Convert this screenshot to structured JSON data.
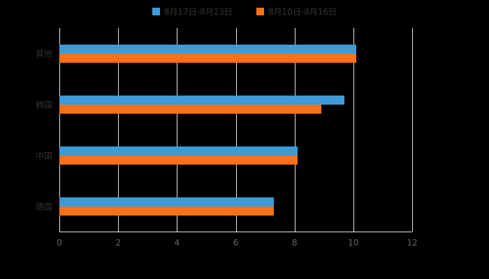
{
  "chart_data": {
    "type": "bar",
    "orientation": "horizontal",
    "title": "",
    "categories": [
      "其他",
      "韩国",
      "中国",
      "德国"
    ],
    "series": [
      {
        "name": "8月17日-8月23日",
        "color": "#3D9BD8",
        "values": [
          10.1,
          9.7,
          8.1,
          7.3
        ]
      },
      {
        "name": "8月10日-8月16日",
        "color": "#FF7117",
        "values": [
          10.1,
          8.9,
          8.1,
          7.3
        ]
      }
    ],
    "xlabel": "",
    "ylabel": "",
    "xlim": [
      0,
      12
    ],
    "xticks": [
      0,
      2,
      4,
      6,
      8,
      10,
      12
    ],
    "grid": true,
    "legend_position": "top",
    "colors": {
      "background": "#000000",
      "gridline": "#e6e6e6",
      "axis_line": "#e6e6e6",
      "legend_text": "#333333",
      "category_label_text": "#333333",
      "tick_label_text": "#666666"
    }
  }
}
